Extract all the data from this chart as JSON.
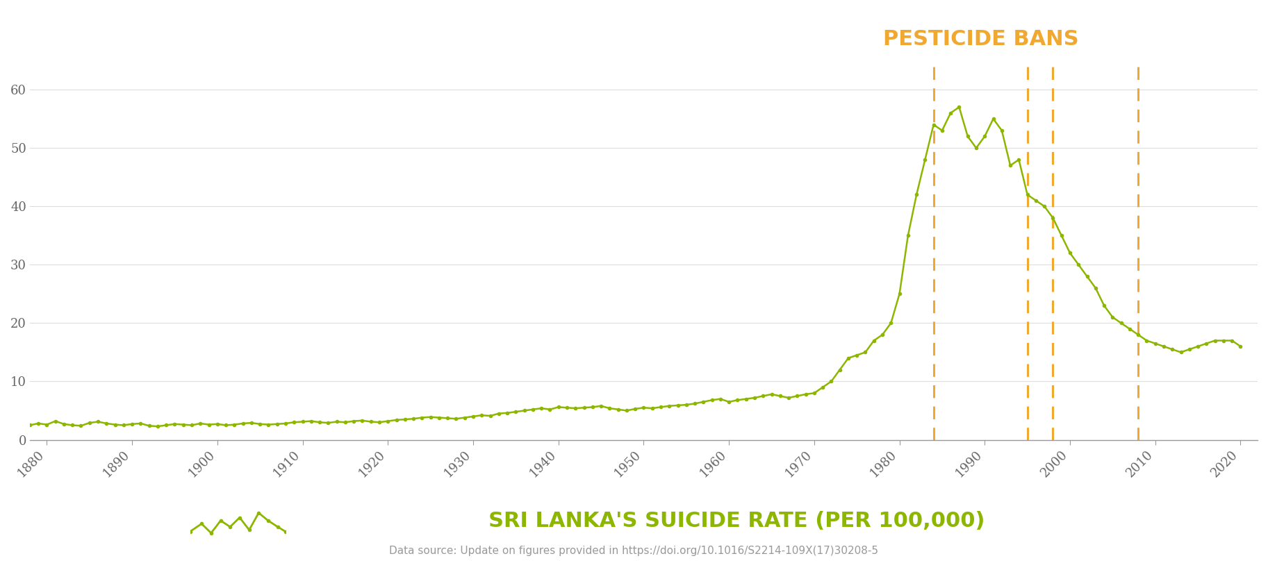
{
  "title": "PESTICIDE BANS",
  "title_color": "#F0A830",
  "xlabel_label": "SRI LANKA'S SUICIDE RATE (PER 100,000)",
  "xlabel_color": "#8DB600",
  "source_text": "Data source: Update on figures provided in https://doi.org/10.1016/S2214-109X(17)30208-5",
  "line_color": "#8DB600",
  "line_width": 1.8,
  "marker": "o",
  "marker_size": 3,
  "background_color": "#FFFFFF",
  "pesticide_ban_years": [
    1984,
    1995,
    1998,
    2008
  ],
  "pesticide_ban_color": "#F0A830",
  "ylim": [
    0,
    65
  ],
  "yticks": [
    0,
    10,
    20,
    30,
    40,
    50,
    60
  ],
  "xlim": [
    1878,
    2022
  ],
  "xticks": [
    1880,
    1890,
    1900,
    1910,
    1920,
    1930,
    1940,
    1950,
    1960,
    1970,
    1980,
    1990,
    2000,
    2010,
    2020
  ],
  "years": [
    1878,
    1879,
    1880,
    1881,
    1882,
    1883,
    1884,
    1885,
    1886,
    1887,
    1888,
    1889,
    1890,
    1891,
    1892,
    1893,
    1894,
    1895,
    1896,
    1897,
    1898,
    1899,
    1900,
    1901,
    1902,
    1903,
    1904,
    1905,
    1906,
    1907,
    1908,
    1909,
    1910,
    1911,
    1912,
    1913,
    1914,
    1915,
    1916,
    1917,
    1918,
    1919,
    1920,
    1921,
    1922,
    1923,
    1924,
    1925,
    1926,
    1927,
    1928,
    1929,
    1930,
    1931,
    1932,
    1933,
    1934,
    1935,
    1936,
    1937,
    1938,
    1939,
    1940,
    1941,
    1942,
    1943,
    1944,
    1945,
    1946,
    1947,
    1948,
    1949,
    1950,
    1951,
    1952,
    1953,
    1954,
    1955,
    1956,
    1957,
    1958,
    1959,
    1960,
    1961,
    1962,
    1963,
    1964,
    1965,
    1966,
    1967,
    1968,
    1969,
    1970,
    1971,
    1972,
    1973,
    1974,
    1975,
    1976,
    1977,
    1978,
    1979,
    1980,
    1981,
    1982,
    1983,
    1984,
    1985,
    1986,
    1987,
    1988,
    1989,
    1990,
    1991,
    1992,
    1993,
    1994,
    1995,
    1996,
    1997,
    1998,
    1999,
    2000,
    2001,
    2002,
    2003,
    2004,
    2005,
    2006,
    2007,
    2008,
    2009,
    2010,
    2011,
    2012,
    2013,
    2014,
    2015,
    2016,
    2017,
    2018,
    2019,
    2020
  ],
  "values": [
    2.5,
    2.8,
    2.6,
    3.2,
    2.7,
    2.5,
    2.4,
    2.9,
    3.1,
    2.8,
    2.6,
    2.5,
    2.7,
    2.8,
    2.4,
    2.3,
    2.5,
    2.7,
    2.6,
    2.5,
    2.8,
    2.6,
    2.7,
    2.5,
    2.6,
    2.8,
    2.9,
    2.7,
    2.6,
    2.7,
    2.8,
    3.0,
    3.1,
    3.2,
    3.0,
    2.9,
    3.1,
    3.0,
    3.2,
    3.3,
    3.1,
    3.0,
    3.2,
    3.4,
    3.5,
    3.6,
    3.8,
    3.9,
    3.8,
    3.7,
    3.6,
    3.8,
    4.0,
    4.2,
    4.1,
    4.5,
    4.6,
    4.8,
    5.0,
    5.2,
    5.4,
    5.2,
    5.6,
    5.5,
    5.4,
    5.5,
    5.6,
    5.8,
    5.4,
    5.2,
    5.0,
    5.3,
    5.5,
    5.4,
    5.6,
    5.8,
    5.9,
    6.0,
    6.2,
    6.5,
    6.8,
    7.0,
    6.5,
    6.8,
    7.0,
    7.2,
    7.5,
    7.8,
    7.5,
    7.2,
    7.5,
    7.8,
    8.0,
    9.0,
    10.0,
    12.0,
    14.0,
    14.5,
    15.0,
    17.0,
    18.0,
    20.0,
    25.0,
    35.0,
    42.0,
    48.0,
    54.0,
    53.0,
    56.0,
    57.0,
    52.0,
    50.0,
    52.0,
    55.0,
    53.0,
    47.0,
    48.0,
    42.0,
    41.0,
    40.0,
    38.0,
    35.0,
    32.0,
    30.0,
    28.0,
    26.0,
    23.0,
    21.0,
    20.0,
    19.0,
    18.0,
    17.0,
    16.5,
    16.0,
    15.5,
    15.0,
    15.5,
    16.0,
    16.5,
    17.0,
    17.0,
    17.0,
    16.0
  ]
}
